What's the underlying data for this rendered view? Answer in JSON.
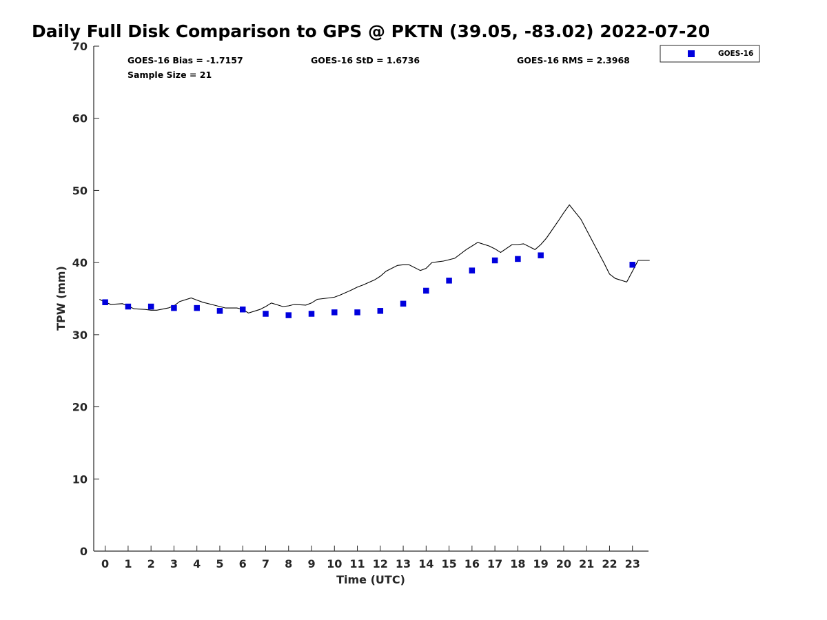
{
  "chart_data": {
    "type": "scatter",
    "title": "Daily Full Disk Comparison to GPS @ PKTN (39.05, -83.02) 2022-07-20",
    "xlabel": "Time (UTC)",
    "ylabel": "TPW (mm)",
    "xlim": [
      -0.5,
      23.7
    ],
    "ylim": [
      0,
      70
    ],
    "xticks": [
      "0",
      "1",
      "2",
      "3",
      "4",
      "5",
      "6",
      "7",
      "8",
      "9",
      "10",
      "11",
      "12",
      "13",
      "14",
      "15",
      "16",
      "17",
      "18",
      "19",
      "20",
      "21",
      "22",
      "23"
    ],
    "yticks": [
      "0",
      "10",
      "20",
      "30",
      "40",
      "50",
      "60",
      "70"
    ],
    "grid": false,
    "legend_position": "outside top-right",
    "stats": {
      "bias": "GOES-16 Bias = -1.7157",
      "std": "GOES-16 StD = 1.6736",
      "rms": "GOES-16 RMS = 2.3968",
      "sample_size": "Sample Size = 21"
    },
    "series": [
      {
        "name": "GOES-16",
        "kind": "scatter",
        "marker": "square",
        "color": "#0000dd",
        "x": [
          0,
          1,
          2,
          3,
          4,
          5,
          6,
          7,
          8,
          9,
          10,
          11,
          12,
          13,
          14,
          15,
          16,
          17,
          18,
          19,
          23
        ],
        "y": [
          34.5,
          33.9,
          33.9,
          33.7,
          33.7,
          33.3,
          33.5,
          32.9,
          32.7,
          32.9,
          33.1,
          33.1,
          33.3,
          34.3,
          36.1,
          37.5,
          38.9,
          40.3,
          40.5,
          41.0,
          39.7
        ]
      },
      {
        "kind": "line",
        "color": "#000000",
        "x": [
          -0.25,
          0,
          0.25,
          0.75,
          1,
          1.25,
          1.75,
          2,
          2.25,
          2.75,
          3,
          3.25,
          3.75,
          4,
          4.25,
          4.75,
          5,
          5.25,
          5.75,
          6,
          6.25,
          6.75,
          7,
          7.25,
          7.75,
          8,
          8.25,
          8.75,
          9,
          9.25,
          9.75,
          10,
          10.25,
          10.75,
          11,
          11.25,
          11.75,
          12,
          12.25,
          12.75,
          13,
          13.25,
          13.75,
          14,
          14.25,
          14.75,
          15,
          15.25,
          15.75,
          16,
          16.25,
          16.75,
          17,
          17.25,
          17.75,
          18,
          18.25,
          18.75,
          19,
          19.25,
          19.75,
          20,
          20.25,
          20.75,
          21,
          21.25,
          21.75,
          22,
          22.25,
          22.75,
          23,
          23.25,
          23.75
        ],
        "y": [
          34.9,
          34.5,
          34.2,
          34.3,
          34.0,
          33.6,
          33.5,
          33.4,
          33.4,
          33.7,
          34.0,
          34.6,
          35.1,
          34.8,
          34.5,
          34.1,
          33.9,
          33.7,
          33.7,
          33.5,
          33.0,
          33.5,
          33.9,
          34.4,
          33.9,
          34.0,
          34.2,
          34.1,
          34.4,
          34.9,
          35.1,
          35.2,
          35.5,
          36.2,
          36.6,
          36.9,
          37.6,
          38.1,
          38.8,
          39.6,
          39.7,
          39.7,
          38.9,
          39.2,
          40.0,
          40.2,
          40.4,
          40.6,
          41.8,
          42.3,
          42.8,
          42.3,
          41.9,
          41.4,
          42.5,
          42.5,
          42.6,
          41.8,
          42.5,
          43.4,
          45.7,
          46.9,
          48.0,
          46.0,
          44.5,
          43.0,
          40.0,
          38.4,
          37.8,
          37.3,
          38.8,
          40.3,
          40.3
        ]
      }
    ]
  }
}
